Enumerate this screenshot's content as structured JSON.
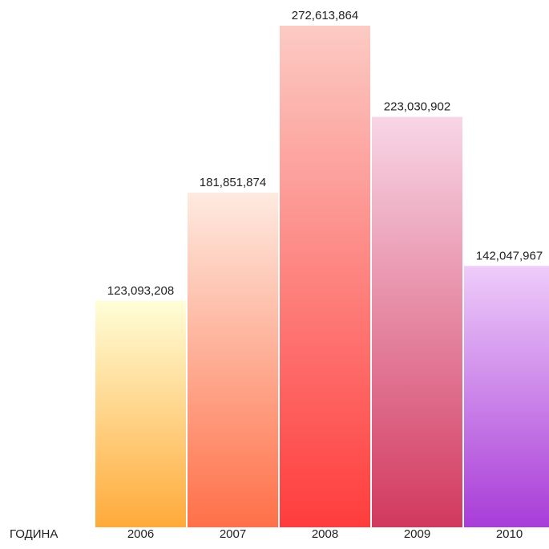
{
  "chart_data": {
    "type": "bar",
    "xlabel": "ГОДИНА",
    "categories": [
      "2006",
      "2007",
      "2008",
      "2009",
      "2010"
    ],
    "values": [
      123093208,
      181851874,
      272613864,
      223030902,
      142047967
    ],
    "value_labels": [
      "123,093,208",
      "181,851,874",
      "272,613,864",
      "223,030,902",
      "142,047,967"
    ],
    "ylim": [
      0,
      285000000
    ],
    "grid": false,
    "bar_gradients": [
      {
        "top": "#fffed8",
        "bottom": "#ffaa3a"
      },
      {
        "top": "#feeae0",
        "bottom": "#ff7048"
      },
      {
        "top": "#fccbc4",
        "bottom": "#ff3c3c"
      },
      {
        "top": "#f8d6e6",
        "bottom": "#d2385e"
      },
      {
        "top": "#eeccfa",
        "bottom": "#a83cd8"
      }
    ]
  }
}
